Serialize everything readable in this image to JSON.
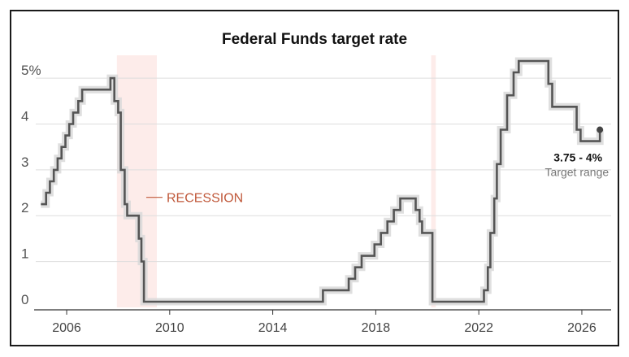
{
  "chart_data": {
    "type": "line",
    "title": "Federal Funds target rate",
    "xlabel": "",
    "ylabel": "",
    "xlim": [
      2004.8,
      2027.2
    ],
    "ylim": [
      0,
      5.25
    ],
    "x_ticks": [
      2006,
      2010,
      2014,
      2018,
      2022,
      2026
    ],
    "x_tick_labels": [
      "2006",
      "2010",
      "2014",
      "2018",
      "2022",
      "2026"
    ],
    "y_ticks": [
      0,
      1,
      2,
      3,
      4,
      5
    ],
    "y_tick_labels": [
      "0",
      "1",
      "2",
      "3",
      "4",
      "5%"
    ],
    "grid": "horizontal",
    "recession_label": "RECESSION",
    "recessions": [
      {
        "start": 2007.95,
        "end": 2009.5
      },
      {
        "start": 2020.15,
        "end": 2020.33
      }
    ],
    "annotation": {
      "value": "3.75 - 4%",
      "label": "Target range"
    },
    "colors": {
      "line": "#555555",
      "band": "#d9d9d9",
      "recession": "#fdecea",
      "recession_text": "#c0593b",
      "grid": "#dddddd"
    },
    "series": [
      {
        "style": "step",
        "x": [
          2005.0,
          2005.2,
          2005.35,
          2005.5,
          2005.65,
          2005.8,
          2005.95,
          2006.1,
          2006.25,
          2006.45,
          2006.6,
          2007.7,
          2007.85,
          2008.0,
          2008.1,
          2008.25,
          2008.35,
          2008.8,
          2008.9,
          2009.0,
          2015.95,
          2016.95,
          2017.2,
          2017.45,
          2017.95,
          2018.2,
          2018.45,
          2018.7,
          2018.95,
          2019.55,
          2019.7,
          2019.8,
          2020.2,
          2022.2,
          2022.35,
          2022.45,
          2022.6,
          2022.7,
          2022.85,
          2023.1,
          2023.35,
          2023.55,
          2024.7,
          2024.85,
          2025.8,
          2025.95,
          2026.7
        ],
        "y": [
          2.25,
          2.5,
          2.75,
          3.0,
          3.25,
          3.5,
          3.75,
          4.0,
          4.25,
          4.5,
          4.75,
          5.0,
          4.5,
          4.25,
          3.0,
          2.25,
          2.0,
          1.5,
          1.0,
          0.125,
          0.375,
          0.625,
          0.875,
          1.125,
          1.375,
          1.625,
          1.875,
          2.125,
          2.375,
          2.125,
          1.875,
          1.625,
          0.125,
          0.375,
          0.875,
          1.625,
          2.375,
          3.125,
          3.875,
          4.625,
          5.125,
          5.375,
          4.875,
          4.375,
          3.875,
          3.625,
          3.875
        ]
      }
    ]
  }
}
